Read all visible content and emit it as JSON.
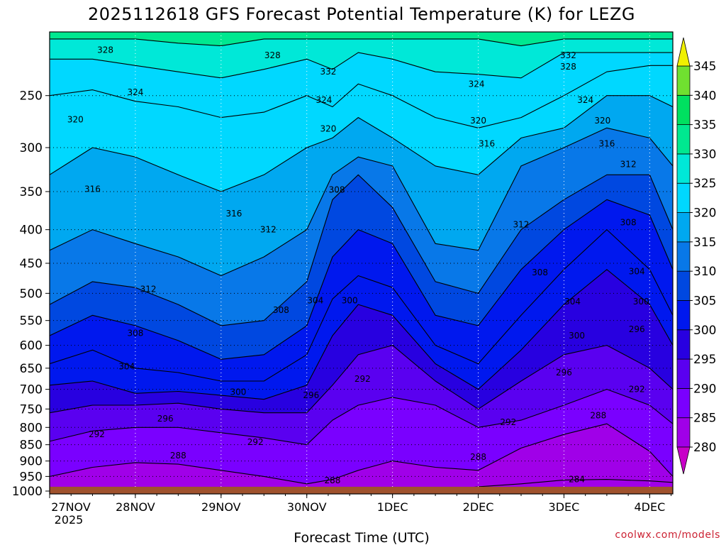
{
  "page": {
    "title": "2025112618 GFS Forecast Potential Temperature (K) for LEZG",
    "credit": "coolwx.com/models"
  },
  "chart_data": {
    "type": "heatmap",
    "title": "2025112618 GFS Forecast Potential Temperature (K) for LEZG",
    "xlabel": "Forecast Time (UTC)",
    "ylabel": "",
    "x_ticks": [
      "27NOV",
      "28NOV",
      "29NOV",
      "30NOV",
      "1DEC",
      "2DEC",
      "3DEC",
      "4DEC"
    ],
    "x_year_label": "2025",
    "x_range_days": [
      0,
      7.27
    ],
    "y_ticks": [
      250,
      300,
      350,
      400,
      450,
      500,
      550,
      600,
      650,
      700,
      750,
      800,
      850,
      900,
      950,
      1000
    ],
    "y_range_hpa": [
      1010,
      200
    ],
    "y_scale": "log",
    "y_inverted": true,
    "grid": "dotted at tick positions",
    "colorbar": {
      "levels": [
        280,
        285,
        290,
        295,
        300,
        305,
        310,
        315,
        320,
        325,
        330,
        335,
        340,
        345
      ],
      "tick_labels": [
        "280",
        "285",
        "290",
        "295",
        "300",
        "305",
        "310",
        "315",
        "320",
        "325",
        "330",
        "335",
        "340",
        "345"
      ],
      "colors": [
        "#c800c8",
        "#a000e8",
        "#7a00ff",
        "#5a00f0",
        "#2800e0",
        "#0018ee",
        "#0048e0",
        "#0878e8",
        "#00a8f0",
        "#00d8ff",
        "#00e8d8",
        "#00e890",
        "#00e060",
        "#70e030",
        "#c0f000",
        "#f0f000"
      ]
    },
    "contour_interval": 2,
    "ground_color": "#a0522d",
    "surface_pressure_hpa": 985,
    "isentrope_pressure_hpa": {
      "x_days": [
        0,
        0.5,
        1,
        1.5,
        2,
        2.5,
        3,
        3.3,
        3.6,
        4,
        4.5,
        5,
        5.5,
        6,
        6.5,
        7,
        7.27
      ],
      "284": [
        1000,
        1000,
        1000,
        1000,
        1000,
        1000,
        1000,
        1000,
        1000,
        1000,
        1000,
        985,
        975,
        962,
        960,
        965,
        970
      ],
      "288": [
        950,
        920,
        905,
        910,
        930,
        950,
        975,
        960,
        930,
        900,
        920,
        930,
        860,
        820,
        790,
        870,
        950
      ],
      "292": [
        840,
        810,
        800,
        800,
        815,
        830,
        850,
        780,
        740,
        720,
        740,
        800,
        780,
        740,
        700,
        740,
        790
      ],
      "296": [
        760,
        740,
        740,
        735,
        750,
        760,
        760,
        690,
        620,
        600,
        680,
        750,
        680,
        620,
        600,
        650,
        700
      ],
      "300": [
        690,
        680,
        710,
        705,
        715,
        725,
        690,
        580,
        520,
        540,
        640,
        700,
        610,
        520,
        460,
        520,
        600
      ],
      "304": [
        640,
        610,
        650,
        660,
        680,
        680,
        620,
        510,
        470,
        490,
        600,
        640,
        540,
        460,
        400,
        460,
        540
      ],
      "308": [
        580,
        540,
        560,
        590,
        630,
        620,
        560,
        440,
        400,
        420,
        540,
        560,
        460,
        400,
        360,
        380,
        460
      ],
      "312": [
        520,
        480,
        490,
        520,
        560,
        550,
        480,
        360,
        330,
        370,
        480,
        500,
        400,
        360,
        330,
        330,
        400
      ],
      "316": [
        430,
        400,
        420,
        440,
        470,
        440,
        400,
        330,
        310,
        320,
        420,
        430,
        320,
        300,
        280,
        290,
        320
      ],
      "320": [
        330,
        300,
        310,
        330,
        350,
        330,
        300,
        290,
        270,
        290,
        320,
        330,
        290,
        280,
        250,
        250,
        260
      ],
      "324": [
        250,
        245,
        255,
        260,
        270,
        265,
        250,
        260,
        240,
        250,
        270,
        280,
        270,
        250,
        230,
        225,
        225
      ],
      "328": [
        220,
        220,
        225,
        230,
        235,
        228,
        220,
        228,
        215,
        220,
        230,
        232,
        235,
        215,
        215,
        215,
        215
      ],
      "332": [
        205,
        205,
        205,
        208,
        210,
        205,
        205,
        205,
        205,
        205,
        205,
        205,
        210,
        205,
        205,
        205,
        205
      ]
    },
    "contour_labels": [
      {
        "text": "328",
        "day": 0.65,
        "p": 213
      },
      {
        "text": "328",
        "day": 2.6,
        "p": 217
      },
      {
        "text": "332",
        "day": 3.25,
        "p": 230
      },
      {
        "text": "332",
        "day": 6.05,
        "p": 217
      },
      {
        "text": "328",
        "day": 6.05,
        "p": 226
      },
      {
        "text": "324",
        "day": 1.0,
        "p": 247
      },
      {
        "text": "324",
        "day": 3.2,
        "p": 254
      },
      {
        "text": "324",
        "day": 4.98,
        "p": 240
      },
      {
        "text": "324",
        "day": 6.25,
        "p": 254
      },
      {
        "text": "320",
        "day": 0.3,
        "p": 272
      },
      {
        "text": "320",
        "day": 3.25,
        "p": 281
      },
      {
        "text": "320",
        "day": 5.0,
        "p": 273
      },
      {
        "text": "320",
        "day": 6.45,
        "p": 273
      },
      {
        "text": "316",
        "day": 0.5,
        "p": 347
      },
      {
        "text": "316",
        "day": 2.15,
        "p": 378
      },
      {
        "text": "316",
        "day": 5.1,
        "p": 296
      },
      {
        "text": "316",
        "day": 6.5,
        "p": 296
      },
      {
        "text": "312",
        "day": 2.55,
        "p": 400
      },
      {
        "text": "312",
        "day": 1.15,
        "p": 493
      },
      {
        "text": "312",
        "day": 5.5,
        "p": 393
      },
      {
        "text": "312",
        "day": 6.75,
        "p": 318
      },
      {
        "text": "308",
        "day": 3.35,
        "p": 348
      },
      {
        "text": "308",
        "day": 2.7,
        "p": 530
      },
      {
        "text": "308",
        "day": 1.0,
        "p": 575
      },
      {
        "text": "308",
        "day": 5.72,
        "p": 465
      },
      {
        "text": "308",
        "day": 6.75,
        "p": 390
      },
      {
        "text": "304",
        "day": 3.1,
        "p": 513
      },
      {
        "text": "304",
        "day": 0.9,
        "p": 646
      },
      {
        "text": "304",
        "day": 6.1,
        "p": 515
      },
      {
        "text": "304",
        "day": 6.85,
        "p": 463
      },
      {
        "text": "300",
        "day": 3.5,
        "p": 513
      },
      {
        "text": "300",
        "day": 2.2,
        "p": 707
      },
      {
        "text": "300",
        "day": 6.15,
        "p": 580
      },
      {
        "text": "300",
        "day": 6.9,
        "p": 515
      },
      {
        "text": "296",
        "day": 1.35,
        "p": 776
      },
      {
        "text": "296",
        "day": 3.05,
        "p": 715
      },
      {
        "text": "296",
        "day": 6.0,
        "p": 660
      },
      {
        "text": "296",
        "day": 6.85,
        "p": 567
      },
      {
        "text": "292",
        "day": 0.55,
        "p": 820
      },
      {
        "text": "292",
        "day": 2.4,
        "p": 842
      },
      {
        "text": "292",
        "day": 3.65,
        "p": 675
      },
      {
        "text": "292",
        "day": 5.35,
        "p": 786
      },
      {
        "text": "292",
        "day": 6.85,
        "p": 700
      },
      {
        "text": "288",
        "day": 1.5,
        "p": 883
      },
      {
        "text": "288",
        "day": 3.3,
        "p": 963
      },
      {
        "text": "288",
        "day": 5.0,
        "p": 887
      },
      {
        "text": "288",
        "day": 6.4,
        "p": 767
      },
      {
        "text": "284",
        "day": 6.15,
        "p": 960
      }
    ]
  }
}
